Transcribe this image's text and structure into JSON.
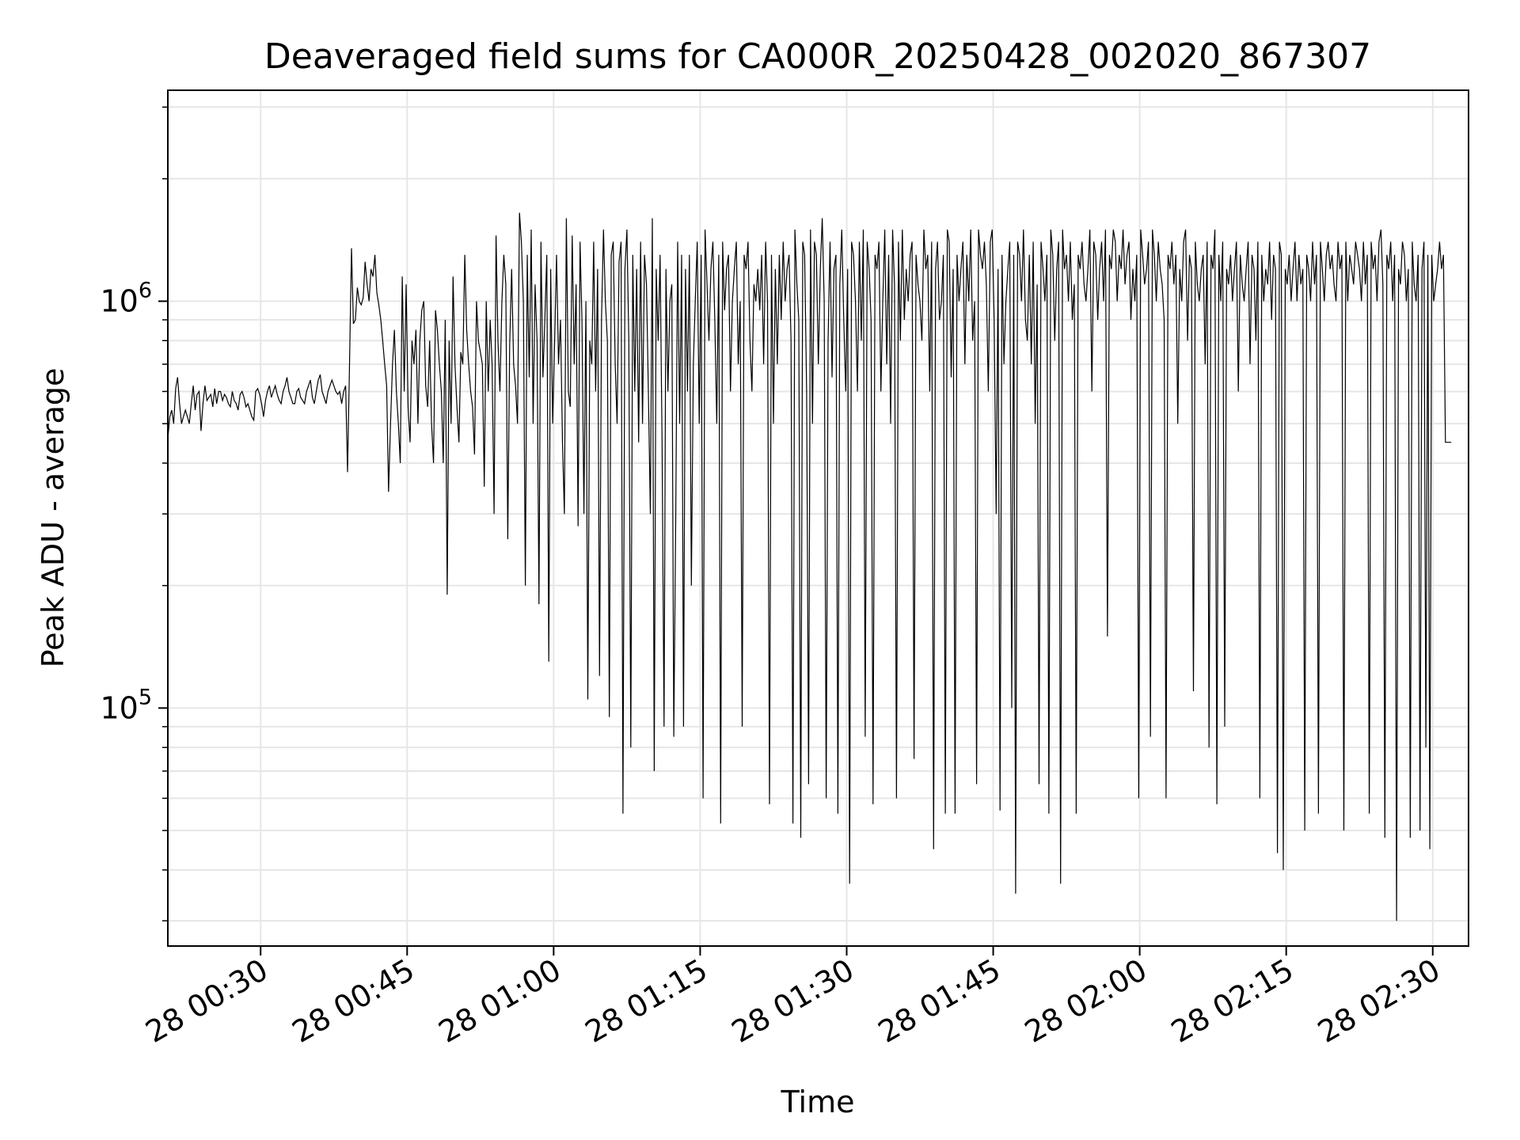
{
  "chart_data": {
    "type": "line",
    "title": "Deaveraged field sums for CA000R_20250428_002020_867307",
    "xlabel": "Time",
    "ylabel": "Peak ADU - average",
    "yscale": "log",
    "grid": true,
    "legend": "none",
    "x_tick_labels": [
      "28 00:30",
      "28 00:45",
      "28 01:00",
      "28 01:15",
      "28 01:30",
      "28 01:45",
      "28 02:00",
      "28 02:15",
      "28 02:30"
    ],
    "y_tick_labels": [
      {
        "base": "10",
        "exp": "5",
        "value": 100000
      },
      {
        "base": "10",
        "exp": "6",
        "value": 1000000
      }
    ],
    "xlim": [
      "2025-04-28 00:20:30",
      "2025-04-28 02:33:40"
    ],
    "ylim": [
      26000,
      3300000
    ],
    "line_color": "#000000",
    "grid_color": "#e6e6e6",
    "series": [
      {
        "x_start": "2025-04-28 00:20:30",
        "x_step_seconds": 12,
        "values": [
          460000,
          520000,
          540000,
          500000,
          610000,
          650000,
          560000,
          500000,
          520000,
          540000,
          520000,
          500000,
          560000,
          620000,
          540000,
          590000,
          600000,
          480000,
          560000,
          620000,
          570000,
          580000,
          590000,
          550000,
          610000,
          560000,
          600000,
          600000,
          570000,
          590000,
          580000,
          560000,
          550000,
          600000,
          570000,
          560000,
          540000,
          590000,
          600000,
          580000,
          550000,
          560000,
          540000,
          520000,
          510000,
          600000,
          610000,
          590000,
          560000,
          520000,
          570000,
          600000,
          620000,
          580000,
          600000,
          620000,
          590000,
          570000,
          560000,
          600000,
          620000,
          650000,
          600000,
          580000,
          560000,
          560000,
          600000,
          610000,
          580000,
          570000,
          560000,
          600000,
          620000,
          640000,
          580000,
          560000,
          600000,
          640000,
          660000,
          600000,
          580000,
          560000,
          600000,
          620000,
          640000,
          620000,
          600000,
          590000,
          600000,
          560000,
          600000,
          620000,
          380000,
          700000,
          1350000,
          880000,
          900000,
          1080000,
          1000000,
          980000,
          1020000,
          1250000,
          1100000,
          1000000,
          1200000,
          1150000,
          1300000,
          1050000,
          980000,
          900000,
          800000,
          700000,
          620000,
          340000,
          500000,
          700000,
          850000,
          600000,
          500000,
          400000,
          1150000,
          600000,
          1100000,
          550000,
          450000,
          800000,
          700000,
          850000,
          500000,
          800000,
          950000,
          1000000,
          620000,
          550000,
          800000,
          500000,
          400000,
          950000,
          850000,
          700000,
          600000,
          400000,
          900000,
          190000,
          800000,
          500000,
          1150000,
          700000,
          550000,
          450000,
          750000,
          700000,
          1300000,
          850000,
          700000,
          600000,
          550000,
          420000,
          1000000,
          800000,
          750000,
          700000,
          350000,
          1000000,
          600000,
          900000,
          700000,
          300000,
          1450000,
          800000,
          600000,
          1000000,
          1300000,
          1100000,
          260000,
          780000,
          1200000,
          700000,
          620000,
          500000,
          1650000,
          1400000,
          1000000,
          200000,
          1300000,
          650000,
          1500000,
          500000,
          1100000,
          800000,
          180000,
          1400000,
          650000,
          900000,
          1300000,
          130000,
          1200000,
          500000,
          800000,
          1300000,
          700000,
          900000,
          450000,
          300000,
          1600000,
          600000,
          550000,
          1450000,
          700000,
          1100000,
          280000,
          1400000,
          900000,
          300000,
          1000000,
          105000,
          800000,
          700000,
          1400000,
          600000,
          1200000,
          120000,
          900000,
          1500000,
          1000000,
          800000,
          95000,
          1300000,
          1400000,
          700000,
          500000,
          1250000,
          1400000,
          55000,
          1200000,
          1500000,
          800000,
          80000,
          1300000,
          600000,
          1200000,
          450000,
          1400000,
          500000,
          1300000,
          1100000,
          600000,
          300000,
          1600000,
          70000,
          1200000,
          800000,
          1300000,
          450000,
          90000,
          1200000,
          600000,
          1000000,
          1100000,
          85000,
          300000,
          1400000,
          500000,
          1300000,
          90000,
          1200000,
          600000,
          1300000,
          200000,
          700000,
          1000000,
          1400000,
          500000,
          1300000,
          60000,
          1500000,
          1100000,
          800000,
          1200000,
          1400000,
          900000,
          500000,
          1300000,
          52000,
          1400000,
          950000,
          1200000,
          1300000,
          600000,
          1000000,
          1200000,
          1400000,
          700000,
          1000000,
          90000,
          1300000,
          1200000,
          1400000,
          800000,
          600000,
          1100000,
          1000000,
          1200000,
          950000,
          1300000,
          700000,
          1400000,
          1000000,
          58000,
          1300000,
          500000,
          1200000,
          700000,
          1300000,
          900000,
          1400000,
          1000000,
          1200000,
          1300000,
          800000,
          52000,
          1500000,
          1100000,
          900000,
          48000,
          1400000,
          1300000,
          600000,
          65000,
          1500000,
          500000,
          1400000,
          1300000,
          700000,
          1200000,
          1600000,
          1000000,
          60000,
          800000,
          1400000,
          650000,
          1200000,
          1300000,
          55000,
          1100000,
          1500000,
          900000,
          600000,
          1200000,
          37000,
          1400000,
          1300000,
          1000000,
          600000,
          1400000,
          800000,
          1500000,
          85000,
          1400000,
          1200000,
          900000,
          58000,
          1300000,
          1200000,
          1400000,
          600000,
          1000000,
          1500000,
          700000,
          1300000,
          500000,
          1500000,
          1100000,
          60000,
          1400000,
          800000,
          1500000,
          900000,
          1200000,
          1000000,
          1300000,
          1400000,
          75000,
          1300000,
          1100000,
          1000000,
          800000,
          1500000,
          1200000,
          1300000,
          600000,
          1400000,
          45000,
          1200000,
          1400000,
          900000,
          1000000,
          1300000,
          55000,
          1500000,
          1400000,
          650000,
          1200000,
          55000,
          1300000,
          1000000,
          1200000,
          1400000,
          700000,
          1300000,
          1000000,
          1500000,
          800000,
          1000000,
          65000,
          1500000,
          1300000,
          1200000,
          1400000,
          1100000,
          600000,
          1400000,
          1500000,
          900000,
          300000,
          1200000,
          56000,
          1300000,
          700000,
          1000000,
          1200000,
          1400000,
          100000,
          1300000,
          35000,
          1400000,
          1300000,
          1000000,
          1500000,
          900000,
          800000,
          1300000,
          700000,
          1400000,
          500000,
          1100000,
          65000,
          1400000,
          1200000,
          1000000,
          1300000,
          55000,
          1500000,
          1300000,
          800000,
          1200000,
          1400000,
          37000,
          1500000,
          1200000,
          1300000,
          1000000,
          1400000,
          900000,
          1100000,
          55000,
          1300000,
          1200000,
          1400000,
          1100000,
          1000000,
          1200000,
          1500000,
          600000,
          1400000,
          1300000,
          900000,
          1200000,
          1400000,
          1000000,
          1500000,
          150000,
          1300000,
          1200000,
          1500000,
          1400000,
          1000000,
          1300000,
          1200000,
          1500000,
          1100000,
          1300000,
          1400000,
          900000,
          1200000,
          1000000,
          1300000,
          60000,
          1500000,
          1300000,
          1100000,
          1200000,
          1400000,
          85000,
          1500000,
          1300000,
          1000000,
          1400000,
          1200000,
          1100000,
          900000,
          60000,
          1300000,
          1200000,
          1400000,
          1100000,
          1300000,
          500000,
          1200000,
          1000000,
          1400000,
          1500000,
          800000,
          1300000,
          1200000,
          110000,
          1400000,
          1100000,
          1000000,
          1200000,
          1300000,
          700000,
          1400000,
          80000,
          1300000,
          1200000,
          1500000,
          58000,
          1300000,
          1000000,
          1400000,
          90000,
          1200000,
          1100000,
          1300000,
          1000000,
          1200000,
          1400000,
          600000,
          1300000,
          1100000,
          1000000,
          1200000,
          1400000,
          700000,
          1300000,
          1200000,
          800000,
          1400000,
          60000,
          1300000,
          1000000,
          1200000,
          1100000,
          1400000,
          900000,
          1300000,
          1200000,
          44000,
          1400000,
          1300000,
          40000,
          1200000,
          1100000,
          1300000,
          1000000,
          1200000,
          1400000,
          1000000,
          1300000,
          1100000,
          1200000,
          50000,
          1300000,
          1200000,
          1000000,
          1400000,
          1100000,
          1300000,
          55000,
          1400000,
          1200000,
          1000000,
          1300000,
          1400000,
          1200000,
          1300000,
          1100000,
          1000000,
          1400000,
          1200000,
          1300000,
          50000,
          1400000,
          1000000,
          1300000,
          1200000,
          1100000,
          1400000,
          1300000,
          1200000,
          1000000,
          1400000,
          1100000,
          1300000,
          55000,
          1400000,
          1200000,
          1300000,
          1000000,
          1400000,
          1500000,
          1100000,
          48000,
          1300000,
          1200000,
          1400000,
          1000000,
          1300000,
          30000,
          1200000,
          1100000,
          1400000,
          1300000,
          1000000,
          1200000,
          48000,
          1400000,
          1100000,
          1000000,
          1300000,
          50000,
          1200000,
          1400000,
          80000,
          1300000,
          45000,
          1300000,
          1000000,
          1100000,
          1200000,
          1400000,
          1200000,
          1300000,
          450000,
          450000,
          450000,
          450000
        ]
      }
    ]
  }
}
